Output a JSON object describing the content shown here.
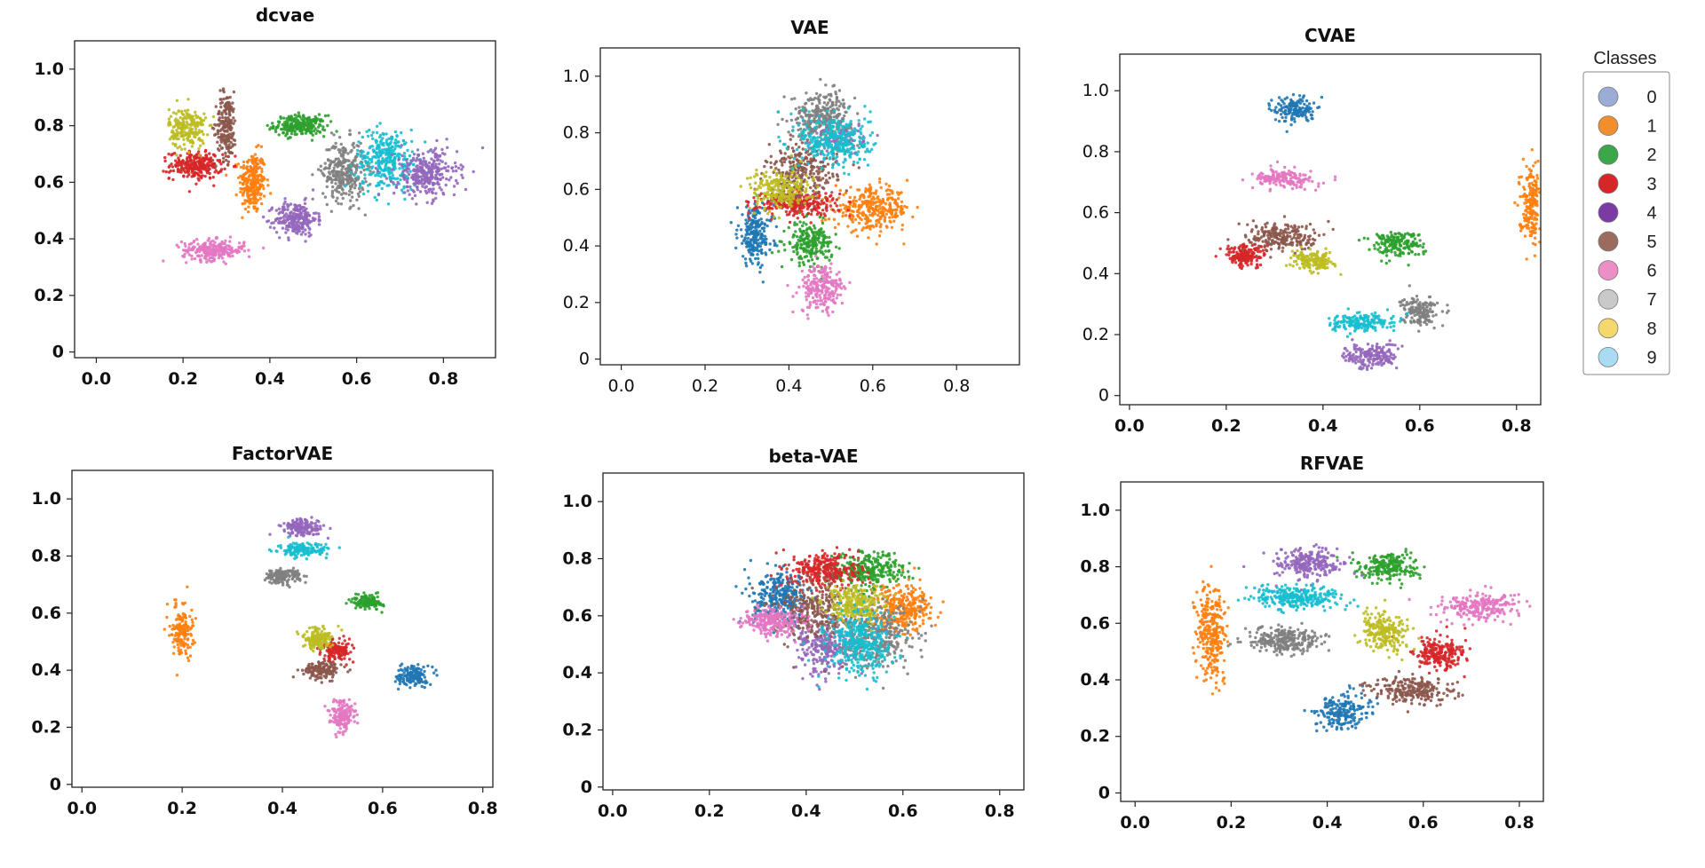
{
  "chart_data": [
    {
      "type": "scatter",
      "title": "dcvae",
      "x_ticks": [
        "0.0",
        "0.2",
        "0.4",
        "0.6",
        "0.8"
      ],
      "y_ticks": [
        "0",
        "0.2",
        "0.4",
        "0.6",
        "0.8",
        "1.0"
      ],
      "xlim": [
        -0.05,
        0.92
      ],
      "ylim": [
        -0.02,
        1.1
      ],
      "clusters": [
        {
          "class": 0,
          "x": 0.36,
          "y": 0.8,
          "rx": 0.018,
          "ry": 0.04,
          "n": 0
        },
        {
          "class": 1,
          "x": 0.36,
          "y": 0.6,
          "rx": 0.025,
          "ry": 0.09,
          "n": 260
        },
        {
          "class": 2,
          "x": 0.47,
          "y": 0.8,
          "rx": 0.05,
          "ry": 0.03,
          "n": 240
        },
        {
          "class": 3,
          "x": 0.23,
          "y": 0.66,
          "rx": 0.05,
          "ry": 0.04,
          "n": 260
        },
        {
          "class": 4,
          "x": 0.46,
          "y": 0.47,
          "rx": 0.04,
          "ry": 0.05,
          "n": 240
        },
        {
          "class": 5,
          "x": 0.3,
          "y": 0.8,
          "rx": 0.02,
          "ry": 0.1,
          "n": 200
        },
        {
          "class": 6,
          "x": 0.27,
          "y": 0.36,
          "rx": 0.06,
          "ry": 0.03,
          "n": 240
        },
        {
          "class": 7,
          "x": 0.57,
          "y": 0.64,
          "rx": 0.04,
          "ry": 0.09,
          "n": 300
        },
        {
          "class": 8,
          "x": 0.21,
          "y": 0.79,
          "rx": 0.035,
          "ry": 0.06,
          "n": 220
        },
        {
          "class": 9,
          "x": 0.67,
          "y": 0.68,
          "rx": 0.06,
          "ry": 0.09,
          "n": 320
        },
        {
          "class": 4,
          "x": 0.76,
          "y": 0.63,
          "rx": 0.06,
          "ry": 0.07,
          "n": 300
        }
      ]
    },
    {
      "type": "scatter",
      "title": "VAE",
      "x_ticks": [
        "0.0",
        "0.2",
        "0.4",
        "0.6",
        "0.8"
      ],
      "y_ticks": [
        "0",
        "0.2",
        "0.4",
        "0.6",
        "0.8",
        "1.0"
      ],
      "xlim": [
        -0.05,
        0.95
      ],
      "ylim": [
        -0.02,
        1.1
      ],
      "clusters": [
        {
          "class": 0,
          "x": 0.32,
          "y": 0.44,
          "rx": 0.035,
          "ry": 0.09,
          "n": 220
        },
        {
          "class": 1,
          "x": 0.6,
          "y": 0.53,
          "rx": 0.075,
          "ry": 0.06,
          "n": 320
        },
        {
          "class": 2,
          "x": 0.45,
          "y": 0.41,
          "rx": 0.045,
          "ry": 0.06,
          "n": 220
        },
        {
          "class": 3,
          "x": 0.42,
          "y": 0.55,
          "rx": 0.08,
          "ry": 0.035,
          "n": 260
        },
        {
          "class": 4,
          "x": 0.52,
          "y": 0.78,
          "rx": 0.05,
          "ry": 0.05,
          "n": 100
        },
        {
          "class": 5,
          "x": 0.43,
          "y": 0.66,
          "rx": 0.07,
          "ry": 0.08,
          "n": 260
        },
        {
          "class": 6,
          "x": 0.48,
          "y": 0.25,
          "rx": 0.045,
          "ry": 0.07,
          "n": 220
        },
        {
          "class": 7,
          "x": 0.48,
          "y": 0.86,
          "rx": 0.06,
          "ry": 0.07,
          "n": 300
        },
        {
          "class": 8,
          "x": 0.38,
          "y": 0.6,
          "rx": 0.06,
          "ry": 0.06,
          "n": 220
        },
        {
          "class": 9,
          "x": 0.51,
          "y": 0.77,
          "rx": 0.07,
          "ry": 0.08,
          "n": 320
        }
      ]
    },
    {
      "type": "scatter",
      "title": "CVAE",
      "x_ticks": [
        "0.0",
        "0.2",
        "0.4",
        "0.6",
        "0.8"
      ],
      "y_ticks": [
        "0",
        "0.2",
        "0.4",
        "0.6",
        "0.8",
        "1.0"
      ],
      "xlim": [
        -0.02,
        0.85
      ],
      "ylim": [
        -0.03,
        1.12
      ],
      "clusters": [
        {
          "class": 0,
          "x": 0.34,
          "y": 0.94,
          "rx": 0.035,
          "ry": 0.035,
          "n": 160
        },
        {
          "class": 1,
          "x": 0.83,
          "y": 0.63,
          "rx": 0.02,
          "ry": 0.1,
          "n": 200
        },
        {
          "class": 2,
          "x": 0.55,
          "y": 0.5,
          "rx": 0.045,
          "ry": 0.035,
          "n": 180
        },
        {
          "class": 3,
          "x": 0.24,
          "y": 0.46,
          "rx": 0.035,
          "ry": 0.03,
          "n": 180
        },
        {
          "class": 4,
          "x": 0.5,
          "y": 0.13,
          "rx": 0.045,
          "ry": 0.035,
          "n": 180
        },
        {
          "class": 5,
          "x": 0.32,
          "y": 0.52,
          "rx": 0.065,
          "ry": 0.04,
          "n": 220
        },
        {
          "class": 6,
          "x": 0.32,
          "y": 0.71,
          "rx": 0.055,
          "ry": 0.025,
          "n": 160
        },
        {
          "class": 7,
          "x": 0.6,
          "y": 0.28,
          "rx": 0.03,
          "ry": 0.04,
          "n": 160
        },
        {
          "class": 8,
          "x": 0.38,
          "y": 0.44,
          "rx": 0.035,
          "ry": 0.025,
          "n": 160
        },
        {
          "class": 9,
          "x": 0.48,
          "y": 0.24,
          "rx": 0.055,
          "ry": 0.025,
          "n": 180
        }
      ]
    },
    {
      "type": "scatter",
      "title": "FactorVAE",
      "x_ticks": [
        "0.0",
        "0.2",
        "0.4",
        "0.6",
        "0.8"
      ],
      "y_ticks": [
        "0",
        "0.2",
        "0.4",
        "0.6",
        "0.8",
        "1.0"
      ],
      "xlim": [
        -0.02,
        0.82
      ],
      "ylim": [
        -0.01,
        1.1
      ],
      "clusters": [
        {
          "class": 0,
          "x": 0.66,
          "y": 0.38,
          "rx": 0.025,
          "ry": 0.03,
          "n": 150
        },
        {
          "class": 1,
          "x": 0.2,
          "y": 0.54,
          "rx": 0.018,
          "ry": 0.08,
          "n": 160
        },
        {
          "class": 2,
          "x": 0.57,
          "y": 0.64,
          "rx": 0.025,
          "ry": 0.02,
          "n": 140
        },
        {
          "class": 3,
          "x": 0.51,
          "y": 0.47,
          "rx": 0.025,
          "ry": 0.03,
          "n": 150
        },
        {
          "class": 4,
          "x": 0.44,
          "y": 0.9,
          "rx": 0.035,
          "ry": 0.025,
          "n": 150
        },
        {
          "class": 5,
          "x": 0.48,
          "y": 0.4,
          "rx": 0.03,
          "ry": 0.025,
          "n": 150
        },
        {
          "class": 6,
          "x": 0.52,
          "y": 0.24,
          "rx": 0.022,
          "ry": 0.05,
          "n": 150
        },
        {
          "class": 7,
          "x": 0.4,
          "y": 0.73,
          "rx": 0.03,
          "ry": 0.022,
          "n": 140
        },
        {
          "class": 8,
          "x": 0.47,
          "y": 0.51,
          "rx": 0.025,
          "ry": 0.03,
          "n": 150
        },
        {
          "class": 9,
          "x": 0.44,
          "y": 0.82,
          "rx": 0.04,
          "ry": 0.02,
          "n": 150
        }
      ]
    },
    {
      "type": "scatter",
      "title": "beta-VAE",
      "x_ticks": [
        "0.0",
        "0.2",
        "0.4",
        "0.6",
        "0.8"
      ],
      "y_ticks": [
        "0",
        "0.2",
        "0.4",
        "0.6",
        "0.8",
        "1.0"
      ],
      "xlim": [
        -0.02,
        0.85
      ],
      "ylim": [
        -0.01,
        1.1
      ],
      "clusters": [
        {
          "class": 0,
          "x": 0.35,
          "y": 0.66,
          "rx": 0.05,
          "ry": 0.07,
          "n": 300
        },
        {
          "class": 1,
          "x": 0.6,
          "y": 0.63,
          "rx": 0.05,
          "ry": 0.07,
          "n": 300
        },
        {
          "class": 2,
          "x": 0.53,
          "y": 0.76,
          "rx": 0.06,
          "ry": 0.05,
          "n": 300
        },
        {
          "class": 3,
          "x": 0.44,
          "y": 0.76,
          "rx": 0.06,
          "ry": 0.05,
          "n": 300
        },
        {
          "class": 4,
          "x": 0.44,
          "y": 0.49,
          "rx": 0.05,
          "ry": 0.08,
          "n": 250
        },
        {
          "class": 5,
          "x": 0.42,
          "y": 0.62,
          "rx": 0.07,
          "ry": 0.09,
          "n": 300
        },
        {
          "class": 6,
          "x": 0.33,
          "y": 0.58,
          "rx": 0.05,
          "ry": 0.04,
          "n": 250
        },
        {
          "class": 7,
          "x": 0.54,
          "y": 0.53,
          "rx": 0.07,
          "ry": 0.09,
          "n": 350
        },
        {
          "class": 8,
          "x": 0.5,
          "y": 0.64,
          "rx": 0.05,
          "ry": 0.05,
          "n": 250
        },
        {
          "class": 9,
          "x": 0.51,
          "y": 0.5,
          "rx": 0.055,
          "ry": 0.09,
          "n": 350
        }
      ]
    },
    {
      "type": "scatter",
      "title": "RFVAE",
      "x_ticks": [
        "0.0",
        "0.2",
        "0.4",
        "0.6",
        "0.8"
      ],
      "y_ticks": [
        "0",
        "0.2",
        "0.4",
        "0.6",
        "0.8",
        "1.0"
      ],
      "xlim": [
        -0.03,
        0.85
      ],
      "ylim": [
        -0.03,
        1.1
      ],
      "clusters": [
        {
          "class": 0,
          "x": 0.43,
          "y": 0.29,
          "rx": 0.045,
          "ry": 0.055,
          "n": 200
        },
        {
          "class": 1,
          "x": 0.16,
          "y": 0.57,
          "rx": 0.025,
          "ry": 0.14,
          "n": 300
        },
        {
          "class": 2,
          "x": 0.53,
          "y": 0.8,
          "rx": 0.05,
          "ry": 0.04,
          "n": 220
        },
        {
          "class": 3,
          "x": 0.63,
          "y": 0.49,
          "rx": 0.045,
          "ry": 0.05,
          "n": 220
        },
        {
          "class": 4,
          "x": 0.36,
          "y": 0.81,
          "rx": 0.06,
          "ry": 0.045,
          "n": 240
        },
        {
          "class": 5,
          "x": 0.58,
          "y": 0.36,
          "rx": 0.07,
          "ry": 0.04,
          "n": 240
        },
        {
          "class": 6,
          "x": 0.72,
          "y": 0.66,
          "rx": 0.07,
          "ry": 0.04,
          "n": 240
        },
        {
          "class": 7,
          "x": 0.31,
          "y": 0.54,
          "rx": 0.065,
          "ry": 0.04,
          "n": 260
        },
        {
          "class": 8,
          "x": 0.52,
          "y": 0.57,
          "rx": 0.045,
          "ry": 0.055,
          "n": 220
        },
        {
          "class": 9,
          "x": 0.34,
          "y": 0.69,
          "rx": 0.075,
          "ry": 0.035,
          "n": 280
        }
      ]
    }
  ],
  "legend": {
    "title": "Classes",
    "items": [
      {
        "label": "0",
        "color": "#9badd6"
      },
      {
        "label": "1",
        "color": "#f28e2b"
      },
      {
        "label": "2",
        "color": "#3aa84a"
      },
      {
        "label": "3",
        "color": "#d62728"
      },
      {
        "label": "4",
        "color": "#7b3aa6"
      },
      {
        "label": "5",
        "color": "#9b6b5e"
      },
      {
        "label": "6",
        "color": "#ee8ec6"
      },
      {
        "label": "7",
        "color": "#c9c9c9"
      },
      {
        "label": "8",
        "color": "#f5d86b"
      },
      {
        "label": "9",
        "color": "#a9dcf3"
      }
    ]
  },
  "colors": {
    "points": [
      "#1f77b4",
      "#ff7f0e",
      "#2ca02c",
      "#d62728",
      "#9467bd",
      "#8c564b",
      "#e377c2",
      "#7f7f7f",
      "#bcbd22",
      "#17becf"
    ]
  }
}
